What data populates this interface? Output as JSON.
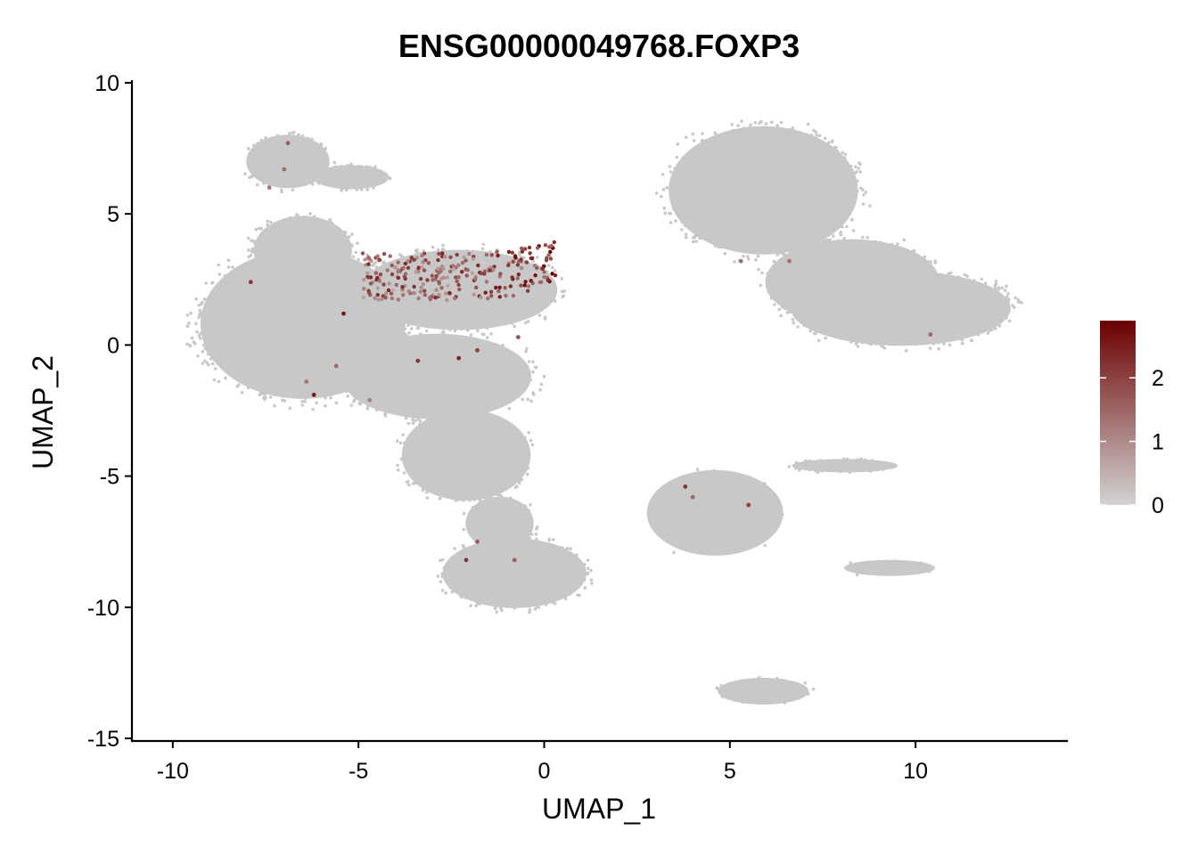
{
  "chart_data": {
    "type": "scatter",
    "title": "ENSG00000049768.FOXP3",
    "xlabel": "UMAP_1",
    "ylabel": "UMAP_2",
    "xlim": [
      -11.1,
      14.1
    ],
    "ylim": [
      -15.1,
      10.1
    ],
    "xticks": [
      "-10",
      "-5",
      "0",
      "5",
      "10"
    ],
    "yticks": [
      "10",
      "5",
      "0",
      "-5",
      "-10",
      "-15"
    ],
    "grid": false,
    "legend": {
      "placement": "right",
      "type": "colorbar",
      "ticks": [
        "0",
        "1",
        "2"
      ],
      "range": [
        0,
        2.9
      ],
      "low_color": "#d3d3d3",
      "high_color": "#6b0000"
    },
    "background_point_color": "#c8c8c8",
    "clusters": [
      {
        "cx": -6.5,
        "cy": 3.6,
        "rx": 1.3,
        "ry": 1.3,
        "n": 550
      },
      {
        "cx": -6.9,
        "cy": 7.0,
        "rx": 1.1,
        "ry": 1.0,
        "n": 350
      },
      {
        "cx": -5.2,
        "cy": 6.4,
        "rx": 1.0,
        "ry": 0.45,
        "n": 180
      },
      {
        "cx": -6.5,
        "cy": 0.8,
        "rx": 2.7,
        "ry": 2.8,
        "n": 1800
      },
      {
        "cx": -2.3,
        "cy": 2.1,
        "rx": 2.6,
        "ry": 1.5,
        "n": 1000
      },
      {
        "cx": -2.9,
        "cy": -1.2,
        "rx": 2.5,
        "ry": 1.6,
        "n": 800
      },
      {
        "cx": -2.1,
        "cy": -4.2,
        "rx": 1.7,
        "ry": 1.7,
        "n": 700
      },
      {
        "cx": -1.2,
        "cy": -6.8,
        "rx": 0.9,
        "ry": 1.0,
        "n": 250
      },
      {
        "cx": -0.8,
        "cy": -8.7,
        "rx": 1.9,
        "ry": 1.3,
        "n": 600
      },
      {
        "cx": 5.9,
        "cy": 5.9,
        "rx": 2.5,
        "ry": 2.4,
        "n": 1200
      },
      {
        "cx": 8.3,
        "cy": 2.4,
        "rx": 2.3,
        "ry": 1.6,
        "n": 700
      },
      {
        "cx": 9.6,
        "cy": 1.4,
        "rx": 2.9,
        "ry": 1.4,
        "n": 1000
      },
      {
        "cx": 8.1,
        "cy": -4.6,
        "rx": 1.4,
        "ry": 0.25,
        "n": 120
      },
      {
        "cx": 5.9,
        "cy": -13.2,
        "rx": 1.2,
        "ry": 0.5,
        "n": 120
      },
      {
        "cx": 9.3,
        "cy": -8.5,
        "rx": 1.2,
        "ry": 0.3,
        "n": 40
      },
      {
        "cx": 4.6,
        "cy": -6.4,
        "rx": 1.8,
        "ry": 1.6,
        "n": 60
      }
    ],
    "expression_region": {
      "cx": -2.3,
      "cy": 2.6,
      "rx": 2.6,
      "ry": 0.9,
      "n": 260
    },
    "scattered_expressing_cells": [
      {
        "x": -7.0,
        "y": 6.7,
        "value": 1.4
      },
      {
        "x": -6.9,
        "y": 7.7,
        "value": 1.6
      },
      {
        "x": -7.4,
        "y": 6.0,
        "value": 1.2
      },
      {
        "x": -7.9,
        "y": 2.4,
        "value": 2.1
      },
      {
        "x": -6.2,
        "y": -1.9,
        "value": 2.5
      },
      {
        "x": -6.4,
        "y": -1.4,
        "value": 1.3
      },
      {
        "x": -5.6,
        "y": -0.8,
        "value": 1.5
      },
      {
        "x": -5.4,
        "y": 1.2,
        "value": 2.6
      },
      {
        "x": -4.7,
        "y": -2.1,
        "value": 1.2
      },
      {
        "x": -3.4,
        "y": -0.6,
        "value": 2.2
      },
      {
        "x": -2.3,
        "y": -0.5,
        "value": 2.4
      },
      {
        "x": -1.8,
        "y": -0.2,
        "value": 2.0
      },
      {
        "x": -0.7,
        "y": 0.3,
        "value": 1.8
      },
      {
        "x": -2.1,
        "y": -8.2,
        "value": 2.2
      },
      {
        "x": -1.8,
        "y": -7.5,
        "value": 1.6
      },
      {
        "x": -0.8,
        "y": -8.2,
        "value": 1.6
      },
      {
        "x": 3.8,
        "y": -5.4,
        "value": 2.2
      },
      {
        "x": 4.0,
        "y": -5.8,
        "value": 1.5
      },
      {
        "x": 5.5,
        "y": -6.1,
        "value": 2.0
      },
      {
        "x": 5.3,
        "y": 3.2,
        "value": 1.4
      },
      {
        "x": 6.6,
        "y": 3.2,
        "value": 1.3
      },
      {
        "x": 10.4,
        "y": 0.4,
        "value": 1.5
      }
    ]
  }
}
